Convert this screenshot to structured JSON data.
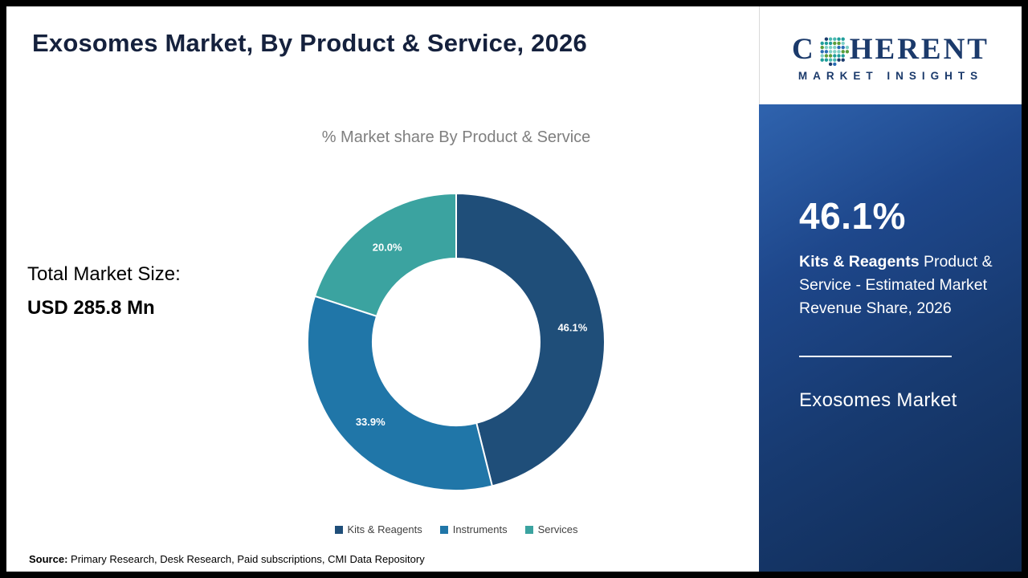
{
  "page": {
    "title": "Exosomes Market, By Product & Service, 2026",
    "source_label": "Source:",
    "source_text": " Primary Research, Desk Research, Paid subscriptions, CMI Data Repository"
  },
  "left_panel": {
    "total_label": "Total Market Size:",
    "total_value": "USD 285.8 Mn"
  },
  "chart_data": {
    "type": "pie",
    "donut": true,
    "title": "% Market share By Product & Service",
    "categories": [
      "Kits & Reagents",
      "Instruments",
      "Services"
    ],
    "values": [
      46.1,
      33.9,
      20.0
    ],
    "labels": [
      "46.1%",
      "33.9%",
      "20.0%"
    ],
    "colors": [
      "#1f4e79",
      "#2076a8",
      "#3ba3a0"
    ],
    "start_angle_deg": 0,
    "direction": "clockwise",
    "legend_position": "bottom"
  },
  "sidebar": {
    "logo_prefix": "C",
    "logo_suffix": "HERENT",
    "logo_sub": "MARKET INSIGHTS",
    "stat_value": "46.1%",
    "stat_bold": "Kits & Reagents",
    "stat_rest": "  Product & Service - Estimated Market Revenue Share, 2026",
    "market_name": "Exosomes Market",
    "accent_color": "#1b3a6b"
  }
}
